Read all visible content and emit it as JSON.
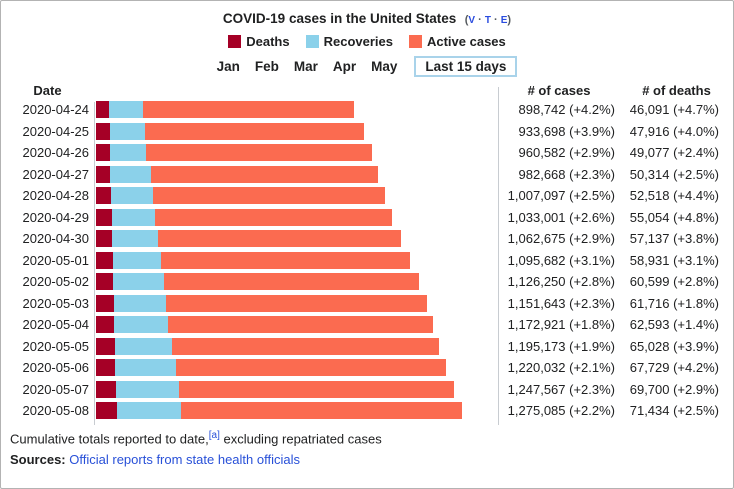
{
  "panel": {
    "title": "COVID-19 cases in the United States",
    "vte": {
      "prefix": "(",
      "links": [
        "v",
        "t",
        "e"
      ],
      "separator": " · ",
      "suffix": ")"
    }
  },
  "legend": [
    {
      "label": "Deaths",
      "color": "#A50026"
    },
    {
      "label": "Recoveries",
      "color": "#8BD1EA"
    },
    {
      "label": "Active cases",
      "color": "#FB6B50"
    }
  ],
  "tabs": {
    "months": [
      "Jan",
      "Feb",
      "Mar",
      "Apr",
      "May"
    ],
    "selected": "Last 15 days"
  },
  "table": {
    "headers": {
      "date": "Date",
      "cases": "# of cases",
      "deaths": "# of deaths"
    }
  },
  "chart_data": {
    "type": "bar",
    "orientation": "horizontal",
    "stacked": true,
    "series_order": [
      "deaths",
      "recoveries",
      "active"
    ],
    "x_max_cases": 1275085,
    "rows": [
      {
        "date": "2020-04-24",
        "cases": 898742,
        "cases_label": "898,742 (+4.2%)",
        "deaths": 46091,
        "deaths_label": "46,091 (+4.7%)",
        "recoveries_est": 119000
      },
      {
        "date": "2020-04-25",
        "cases": 933698,
        "cases_label": "933,698 (+3.9%)",
        "deaths": 47916,
        "deaths_label": "47,916 (+4.0%)",
        "recoveries_est": 122000
      },
      {
        "date": "2020-04-26",
        "cases": 960582,
        "cases_label": "960,582 (+2.9%)",
        "deaths": 49077,
        "deaths_label": "49,077 (+2.4%)",
        "recoveries_est": 124000
      },
      {
        "date": "2020-04-27",
        "cases": 982668,
        "cases_label": "982,668 (+2.3%)",
        "deaths": 50314,
        "deaths_label": "50,314 (+2.5%)",
        "recoveries_est": 143000
      },
      {
        "date": "2020-04-28",
        "cases": 1007097,
        "cases_label": "1,007,097 (+2.5%)",
        "deaths": 52518,
        "deaths_label": "52,518 (+4.4%)",
        "recoveries_est": 147000
      },
      {
        "date": "2020-04-29",
        "cases": 1033001,
        "cases_label": "1,033,001 (+2.6%)",
        "deaths": 55054,
        "deaths_label": "55,054 (+4.8%)",
        "recoveries_est": 151000
      },
      {
        "date": "2020-04-30",
        "cases": 1062675,
        "cases_label": "1,062,675 (+2.9%)",
        "deaths": 57137,
        "deaths_label": "57,137 (+3.8%)",
        "recoveries_est": 159000
      },
      {
        "date": "2020-05-01",
        "cases": 1095682,
        "cases_label": "1,095,682 (+3.1%)",
        "deaths": 58931,
        "deaths_label": "58,931 (+3.1%)",
        "recoveries_est": 167000
      },
      {
        "date": "2020-05-02",
        "cases": 1126250,
        "cases_label": "1,126,250 (+2.8%)",
        "deaths": 60599,
        "deaths_label": "60,599 (+2.8%)",
        "recoveries_est": 175000
      },
      {
        "date": "2020-05-03",
        "cases": 1151643,
        "cases_label": "1,151,643 (+2.3%)",
        "deaths": 61716,
        "deaths_label": "61,716 (+1.8%)",
        "recoveries_est": 181000
      },
      {
        "date": "2020-05-04",
        "cases": 1172921,
        "cases_label": "1,172,921 (+1.8%)",
        "deaths": 62593,
        "deaths_label": "62,593 (+1.4%)",
        "recoveries_est": 188000
      },
      {
        "date": "2020-05-05",
        "cases": 1195173,
        "cases_label": "1,195,173 (+1.9%)",
        "deaths": 65028,
        "deaths_label": "65,028 (+3.9%)",
        "recoveries_est": 200000
      },
      {
        "date": "2020-05-06",
        "cases": 1220032,
        "cases_label": "1,220,032 (+2.1%)",
        "deaths": 67729,
        "deaths_label": "67,729 (+4.2%)",
        "recoveries_est": 212000
      },
      {
        "date": "2020-05-07",
        "cases": 1247567,
        "cases_label": "1,247,567 (+2.3%)",
        "deaths": 69700,
        "deaths_label": "69,700 (+2.9%)",
        "recoveries_est": 220000
      },
      {
        "date": "2020-05-08",
        "cases": 1275085,
        "cases_label": "1,275,085 (+2.2%)",
        "deaths": 71434,
        "deaths_label": "71,434 (+2.5%)",
        "recoveries_est": 226000
      }
    ]
  },
  "footer": {
    "note": "Cumulative totals reported to date,",
    "note_ref": "[a]",
    "note_tail": " excluding repatriated cases",
    "sources_label": "Sources:",
    "sources_link": "Official reports from state health officials"
  }
}
